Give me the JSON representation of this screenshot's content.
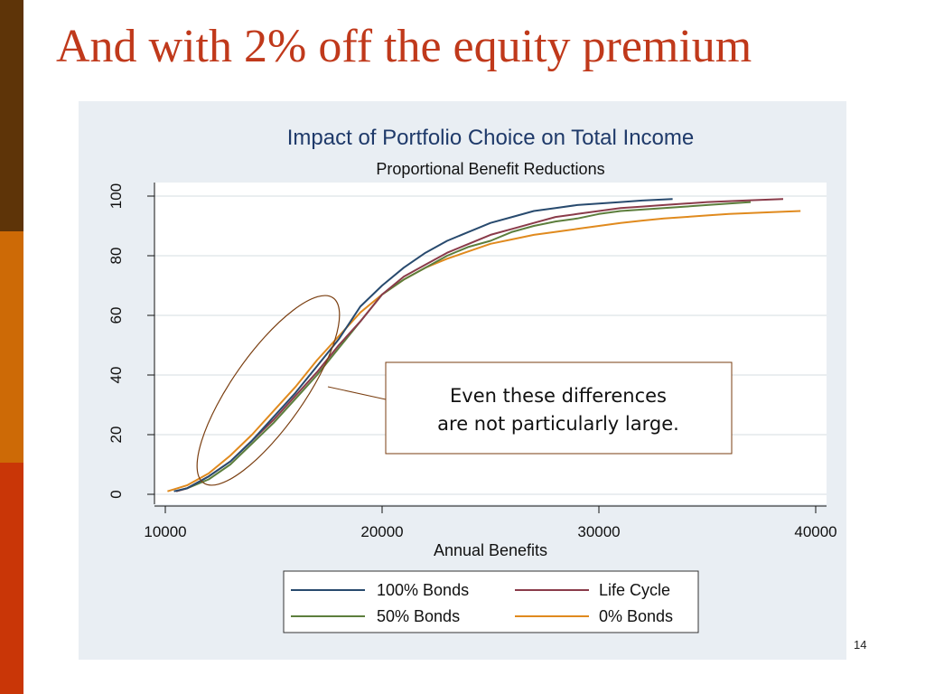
{
  "slide": {
    "title": "And with 2% off  the equity premium",
    "page_number": "14"
  },
  "colors": {
    "title": "#c0391b",
    "sidebar": [
      "#5e3408",
      "#cd6a06",
      "#c93607"
    ],
    "panel_background": "#e9eef3",
    "plot_background": "#ffffff",
    "title_text": "#1f3a6a"
  },
  "chart_data": {
    "type": "line",
    "title": "Impact of Portfolio Choice on Total Income",
    "subtitle": "Proportional Benefit Reductions",
    "xlabel": "Annual Benefits",
    "ylabel": "",
    "xlim": [
      9500,
      40500
    ],
    "ylim": [
      0,
      100
    ],
    "xticks": [
      10000,
      20000,
      30000,
      40000
    ],
    "yticks": [
      0,
      20,
      40,
      60,
      80,
      100
    ],
    "grid": true,
    "legend_position": "bottom",
    "series": [
      {
        "name": "100% Bonds",
        "color": "#284a6e",
        "x": [
          10400,
          11000,
          12000,
          13000,
          14000,
          15000,
          16000,
          17000,
          18000,
          19000,
          20000,
          21000,
          22000,
          23000,
          24000,
          25000,
          26000,
          27000,
          28000,
          29000,
          30000,
          31000,
          32000,
          33400
        ],
        "y": [
          1,
          2,
          6,
          11,
          18,
          26,
          34,
          43,
          52,
          63,
          70,
          76,
          81,
          85,
          88,
          91,
          93,
          95,
          96,
          97,
          97.5,
          98,
          98.5,
          99
        ]
      },
      {
        "name": "Life Cycle",
        "color": "#8a3b4a",
        "x": [
          10500,
          11000,
          12000,
          13000,
          14000,
          15000,
          16000,
          17000,
          18000,
          19000,
          20000,
          21000,
          22000,
          23000,
          24000,
          25000,
          26000,
          27000,
          28000,
          29000,
          30000,
          31000,
          32000,
          33000,
          34000,
          35000,
          36000,
          37000,
          38500
        ],
        "y": [
          1,
          2,
          6,
          11,
          18,
          25,
          33,
          41,
          50,
          58,
          67,
          73,
          77,
          81,
          84,
          87,
          89,
          91,
          93,
          94,
          95,
          96,
          96.5,
          97,
          97.5,
          98,
          98.3,
          98.6,
          99
        ]
      },
      {
        "name": "50% Bonds",
        "color": "#5c7e3c",
        "x": [
          10500,
          11000,
          12000,
          13000,
          14000,
          15000,
          16000,
          17000,
          18000,
          19000,
          20000,
          21000,
          22000,
          23000,
          24000,
          25000,
          26000,
          27000,
          28000,
          29000,
          30000,
          31000,
          32000,
          33000,
          34000,
          35000,
          36000,
          37000
        ],
        "y": [
          1,
          2,
          5,
          10,
          17,
          24,
          32,
          40,
          49,
          58,
          67,
          72,
          76,
          80,
          83,
          85,
          88,
          90,
          91.5,
          92.5,
          94,
          95,
          95.5,
          96,
          96.5,
          97,
          97.5,
          98
        ]
      },
      {
        "name": "0% Bonds",
        "color": "#e08a1e",
        "x": [
          10100,
          11000,
          12000,
          13000,
          14000,
          15000,
          16000,
          17000,
          18000,
          19000,
          20000,
          21000,
          22000,
          23000,
          24000,
          25000,
          26000,
          27000,
          28000,
          29000,
          30000,
          31000,
          32000,
          33000,
          34000,
          35000,
          36000,
          37000,
          38000,
          39300
        ],
        "y": [
          1,
          3,
          7,
          13,
          20,
          28,
          36,
          45,
          53,
          61,
          67,
          72,
          76,
          79,
          81.5,
          84,
          85.5,
          87,
          88,
          89,
          90,
          91,
          91.8,
          92.5,
          93,
          93.5,
          94,
          94.3,
          94.6,
          95
        ]
      }
    ],
    "annotations": [
      {
        "text_lines": [
          "Even these differences",
          "are not particularly large."
        ],
        "target": "lower curves (x 10000 to 19000)"
      }
    ]
  }
}
